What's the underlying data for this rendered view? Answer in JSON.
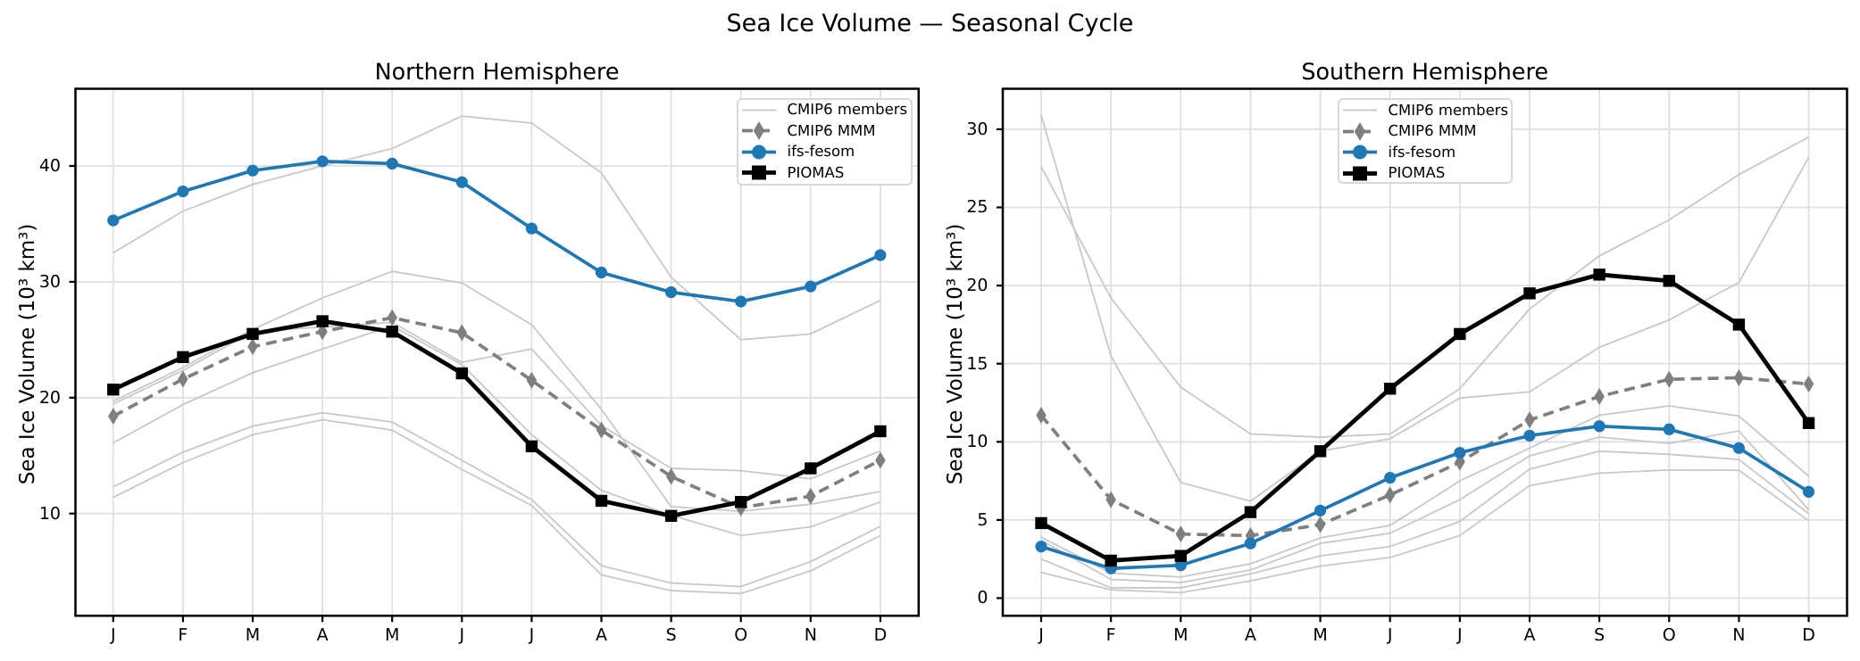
{
  "figure": {
    "title": "Sea Ice Volume — Seasonal Cycle",
    "background_color": "#ffffff",
    "text_color": "#000000",
    "grid_color": "#e0e0e0",
    "spine_color": "#000000",
    "legend_border_color": "#d9d9d9"
  },
  "chart_data": [
    {
      "type": "line",
      "title": "Northern Hemisphere",
      "xlabel": "",
      "ylabel": "Sea Ice Volume (10³ km³)",
      "x_tick_labels": [
        "J",
        "F",
        "M",
        "A",
        "M",
        "J",
        "J",
        "A",
        "S",
        "O",
        "N",
        "D"
      ],
      "y_ticks": [
        10,
        20,
        30,
        40
      ],
      "ylim": [
        1.2,
        46.6
      ],
      "grid": true,
      "legend_position": "upper right",
      "series": [
        {
          "name": "CMIP6 members",
          "color": "#c8c8c8",
          "line_width": 1.8,
          "marker": "none",
          "members": [
            [
              32.5,
              36.1,
              38.4,
              40.0,
              41.5,
              44.3,
              43.7,
              39.4,
              30.4,
              25.0,
              25.5,
              28.4
            ],
            [
              19.7,
              22.6,
              25.9,
              28.6,
              30.9,
              29.9,
              26.3,
              19.0,
              10.6,
              10.2,
              10.8,
              11.9
            ],
            [
              19.45,
              22.35,
              25.7,
              26.1,
              26.5,
              23.05,
              24.2,
              17.6,
              13.9,
              13.7,
              13.0,
              15.4
            ],
            [
              16.1,
              19.4,
              22.15,
              24.2,
              26.2,
              22.85,
              16.8,
              12.0,
              9.85,
              8.1,
              8.85,
              11.0
            ],
            [
              12.3,
              15.3,
              17.55,
              18.7,
              17.9,
              14.6,
              11.2,
              5.5,
              4.0,
              3.7,
              5.85,
              8.9
            ],
            [
              11.4,
              14.4,
              16.8,
              18.1,
              17.2,
              13.8,
              10.7,
              4.7,
              3.35,
              3.1,
              5.05,
              8.1
            ]
          ]
        },
        {
          "name": "CMIP6 MMM",
          "color": "#7f7f7f",
          "line_width": 3.7,
          "dash": [
            12,
            7
          ],
          "marker": "diamond",
          "values": [
            18.4,
            21.6,
            24.4,
            25.7,
            26.9,
            25.6,
            21.5,
            17.2,
            13.2,
            10.5,
            11.5,
            14.6
          ]
        },
        {
          "name": "ifs-fesom",
          "color": "#1f77b4",
          "line_width": 3.7,
          "marker": "circle",
          "values": [
            35.3,
            37.8,
            39.6,
            40.4,
            40.2,
            38.6,
            34.6,
            30.8,
            29.1,
            28.3,
            29.6,
            32.3
          ]
        },
        {
          "name": "PIOMAS",
          "color": "#000000",
          "line_width": 4.8,
          "marker": "square",
          "values": [
            20.7,
            23.5,
            25.5,
            26.6,
            25.7,
            22.1,
            15.8,
            11.1,
            9.8,
            11.0,
            13.9,
            17.1
          ]
        }
      ]
    },
    {
      "type": "line",
      "title": "Southern Hemisphere",
      "xlabel": "",
      "ylabel": "Sea Ice Volume (10³ km³)",
      "x_tick_labels": [
        "J",
        "F",
        "M",
        "A",
        "M",
        "J",
        "J",
        "A",
        "S",
        "O",
        "N",
        "D"
      ],
      "y_ticks": [
        0,
        5,
        10,
        15,
        20,
        25,
        30
      ],
      "ylim": [
        -1.1,
        32.6
      ],
      "grid": true,
      "legend_position": "upper center",
      "series": [
        {
          "name": "CMIP6 members",
          "color": "#c8c8c8",
          "line_width": 1.8,
          "marker": "none",
          "members": [
            [
              27.6,
              19.2,
              13.5,
              10.5,
              10.3,
              10.5,
              13.4,
              18.5,
              21.9,
              24.2,
              27.1,
              29.5
            ],
            [
              30.9,
              15.5,
              7.4,
              6.2,
              9.4,
              10.2,
              12.8,
              13.2,
              16.05,
              17.8,
              20.2,
              28.2
            ],
            [
              3.9,
              1.6,
              1.35,
              2.2,
              3.85,
              4.65,
              7.5,
              9.6,
              11.7,
              12.3,
              11.65,
              7.8
            ],
            [
              3.7,
              1.2,
              1.0,
              1.8,
              3.5,
              4.15,
              6.3,
              9.1,
              10.3,
              9.9,
              10.7,
              5.65
            ],
            [
              2.5,
              0.66,
              0.66,
              1.55,
              2.7,
              3.3,
              4.9,
              8.25,
              9.4,
              9.2,
              8.87,
              5.4
            ],
            [
              1.65,
              0.53,
              0.35,
              1.1,
              2.05,
              2.6,
              4.0,
              7.2,
              8.0,
              8.2,
              8.18,
              4.95
            ]
          ]
        },
        {
          "name": "CMIP6 MMM",
          "color": "#7f7f7f",
          "line_width": 3.7,
          "dash": [
            12,
            7
          ],
          "marker": "diamond",
          "values": [
            11.7,
            6.3,
            4.1,
            4.0,
            4.7,
            6.6,
            8.7,
            11.4,
            12.9,
            14.0,
            14.1,
            13.7
          ]
        },
        {
          "name": "ifs-fesom",
          "color": "#1f77b4",
          "line_width": 3.7,
          "marker": "circle",
          "values": [
            3.3,
            1.9,
            2.1,
            3.5,
            5.6,
            7.7,
            9.3,
            10.4,
            11.0,
            10.8,
            9.6,
            6.8
          ]
        },
        {
          "name": "PIOMAS",
          "color": "#000000",
          "line_width": 4.8,
          "marker": "square",
          "values": [
            4.8,
            2.4,
            2.7,
            5.5,
            9.4,
            13.4,
            16.9,
            19.5,
            20.7,
            20.3,
            17.5,
            11.2
          ]
        }
      ]
    }
  ]
}
